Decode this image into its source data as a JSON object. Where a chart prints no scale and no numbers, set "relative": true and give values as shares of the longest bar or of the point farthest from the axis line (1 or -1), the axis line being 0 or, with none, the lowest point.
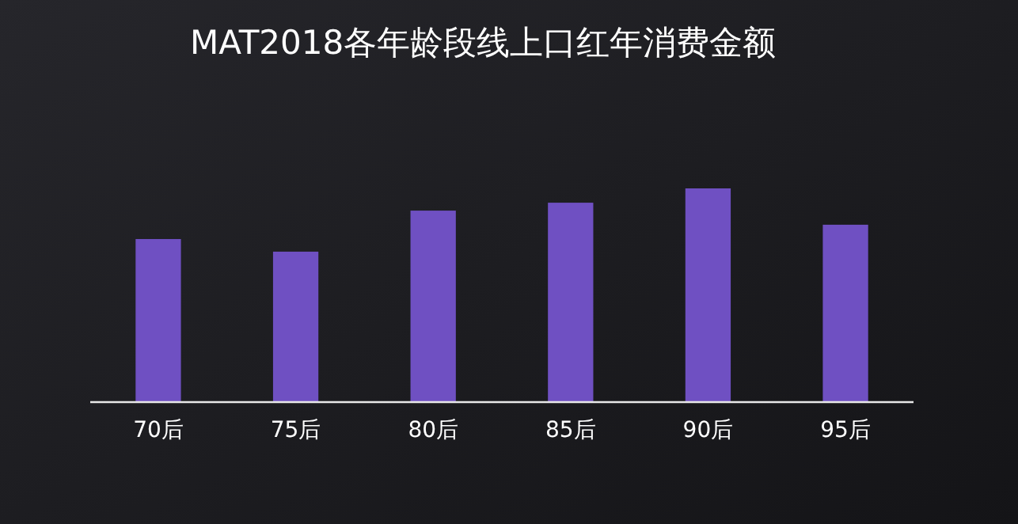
{
  "chart_data": {
    "type": "bar",
    "title": "MAT2018各年龄段线上口红年消费金额",
    "categories": [
      "70后",
      "75后",
      "80后",
      "85后",
      "90后",
      "95后"
    ],
    "values": [
      0.763,
      0.704,
      0.896,
      0.933,
      1,
      0.83
    ],
    "color": "#6f50c2",
    "relative": true
  }
}
